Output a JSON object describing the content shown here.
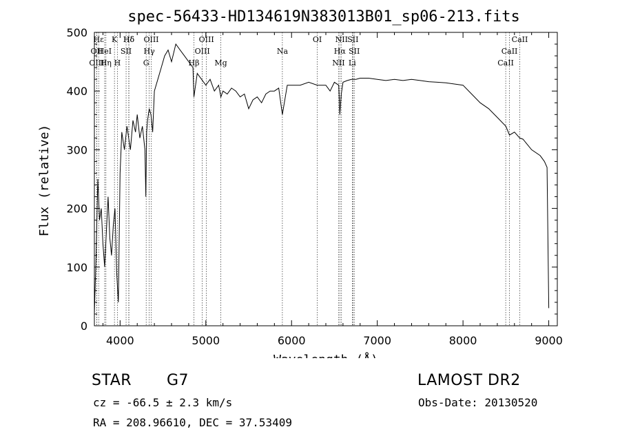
{
  "chart_data": {
    "type": "line",
    "title": "spec-56433-HD134619N383013B01_sp06-213.fits",
    "xlabel": "Wavelength (Å)",
    "ylabel": "Flux (relative)",
    "xlim": [
      3700,
      9100
    ],
    "ylim": [
      0,
      500
    ],
    "xticks": [
      4000,
      5000,
      6000,
      7000,
      8000,
      9000
    ],
    "yticks": [
      0,
      100,
      200,
      300,
      400,
      500
    ],
    "grid": false,
    "series": [
      {
        "x": [
          3700,
          3720,
          3740,
          3760,
          3780,
          3800,
          3820,
          3840,
          3860,
          3880,
          3900,
          3920,
          3940,
          3960,
          3980,
          4000,
          4020,
          4050,
          4080,
          4100,
          4120,
          4150,
          4180,
          4200,
          4230,
          4260,
          4290,
          4300,
          4310,
          4320,
          4340,
          4360,
          4380,
          4400,
          4440,
          4480,
          4520,
          4560,
          4600,
          4650,
          4700,
          4750,
          4800,
          4850,
          4861,
          4900,
          4950,
          5000,
          5050,
          5100,
          5150,
          5175,
          5200,
          5250,
          5300,
          5350,
          5400,
          5450,
          5500,
          5550,
          5600,
          5650,
          5700,
          5750,
          5800,
          5850,
          5893,
          5950,
          6000,
          6100,
          6200,
          6300,
          6400,
          6450,
          6500,
          6550,
          6563,
          6580,
          6600,
          6650,
          6700,
          6750,
          6800,
          6900,
          7000,
          7100,
          7200,
          7300,
          7400,
          7500,
          7600,
          7700,
          7800,
          7900,
          8000,
          8100,
          8200,
          8300,
          8400,
          8500,
          8542,
          8600,
          8662,
          8700,
          8800,
          8900,
          8950,
          8980,
          9000
        ],
        "y": [
          20,
          120,
          250,
          180,
          200,
          140,
          100,
          160,
          220,
          150,
          120,
          170,
          200,
          90,
          40,
          260,
          330,
          300,
          340,
          320,
          300,
          350,
          330,
          360,
          320,
          340,
          300,
          220,
          330,
          350,
          370,
          360,
          330,
          400,
          420,
          440,
          460,
          470,
          450,
          480,
          470,
          460,
          450,
          440,
          390,
          430,
          420,
          410,
          420,
          400,
          410,
          390,
          400,
          395,
          405,
          400,
          390,
          395,
          370,
          385,
          390,
          380,
          395,
          400,
          400,
          405,
          360,
          410,
          410,
          410,
          415,
          410,
          410,
          400,
          415,
          410,
          360,
          395,
          415,
          418,
          420,
          420,
          422,
          422,
          420,
          418,
          420,
          418,
          420,
          418,
          416,
          415,
          414,
          412,
          410,
          395,
          380,
          370,
          355,
          340,
          325,
          330,
          320,
          318,
          300,
          290,
          280,
          270,
          30
        ]
      }
    ],
    "line_markers": [
      {
        "label": "Hδ",
        "x": 4102,
        "row": 1
      },
      {
        "label": "OII",
        "x": 3727,
        "row": 2
      },
      {
        "label": "OIII",
        "x": 3727,
        "row": 3
      },
      {
        "label": "Hε",
        "x": 3750,
        "row": 1
      },
      {
        "label": "K",
        "x": 3934,
        "row": 1
      },
      {
        "label": "HeI",
        "x": 3820,
        "row": 2
      },
      {
        "label": "Hη",
        "x": 3835,
        "row": 3
      },
      {
        "label": "SII",
        "x": 4070,
        "row": 2
      },
      {
        "label": "H",
        "x": 3969,
        "row": 3
      },
      {
        "label": "Hδ",
        "x": 4102,
        "row": 1
      },
      {
        "label": "OIII",
        "x": 4363,
        "row": 1
      },
      {
        "label": "Hγ",
        "x": 4340,
        "row": 2
      },
      {
        "label": "G",
        "x": 4304,
        "row": 3
      },
      {
        "label": "OIII",
        "x": 5007,
        "row": 1
      },
      {
        "label": "OIII",
        "x": 4959,
        "row": 2
      },
      {
        "label": "Hβ",
        "x": 4861,
        "row": 3
      },
      {
        "label": "Mg",
        "x": 5175,
        "row": 3
      },
      {
        "label": "Na",
        "x": 5893,
        "row": 2
      },
      {
        "label": "OI",
        "x": 6300,
        "row": 1
      },
      {
        "label": "NII",
        "x": 6583,
        "row": 1
      },
      {
        "label": "SII",
        "x": 6716,
        "row": 1
      },
      {
        "label": "Hα",
        "x": 6563,
        "row": 2
      },
      {
        "label": "SII",
        "x": 6731,
        "row": 2
      },
      {
        "label": "NII",
        "x": 6548,
        "row": 3
      },
      {
        "label": "Li",
        "x": 6708,
        "row": 3
      },
      {
        "label": "CaII",
        "x": 8662,
        "row": 1
      },
      {
        "label": "CaII",
        "x": 8542,
        "row": 2
      },
      {
        "label": "CaII",
        "x": 8498,
        "row": 3
      }
    ]
  },
  "info": {
    "object_type": "STAR",
    "subclass": "G7",
    "survey": "LAMOST DR2",
    "redshift": "cz = -66.5 ± 2.3 km/s",
    "obs_date": "Obs-Date: 20130520",
    "coords": "RA = 208.96610, DEC =  37.53409"
  }
}
